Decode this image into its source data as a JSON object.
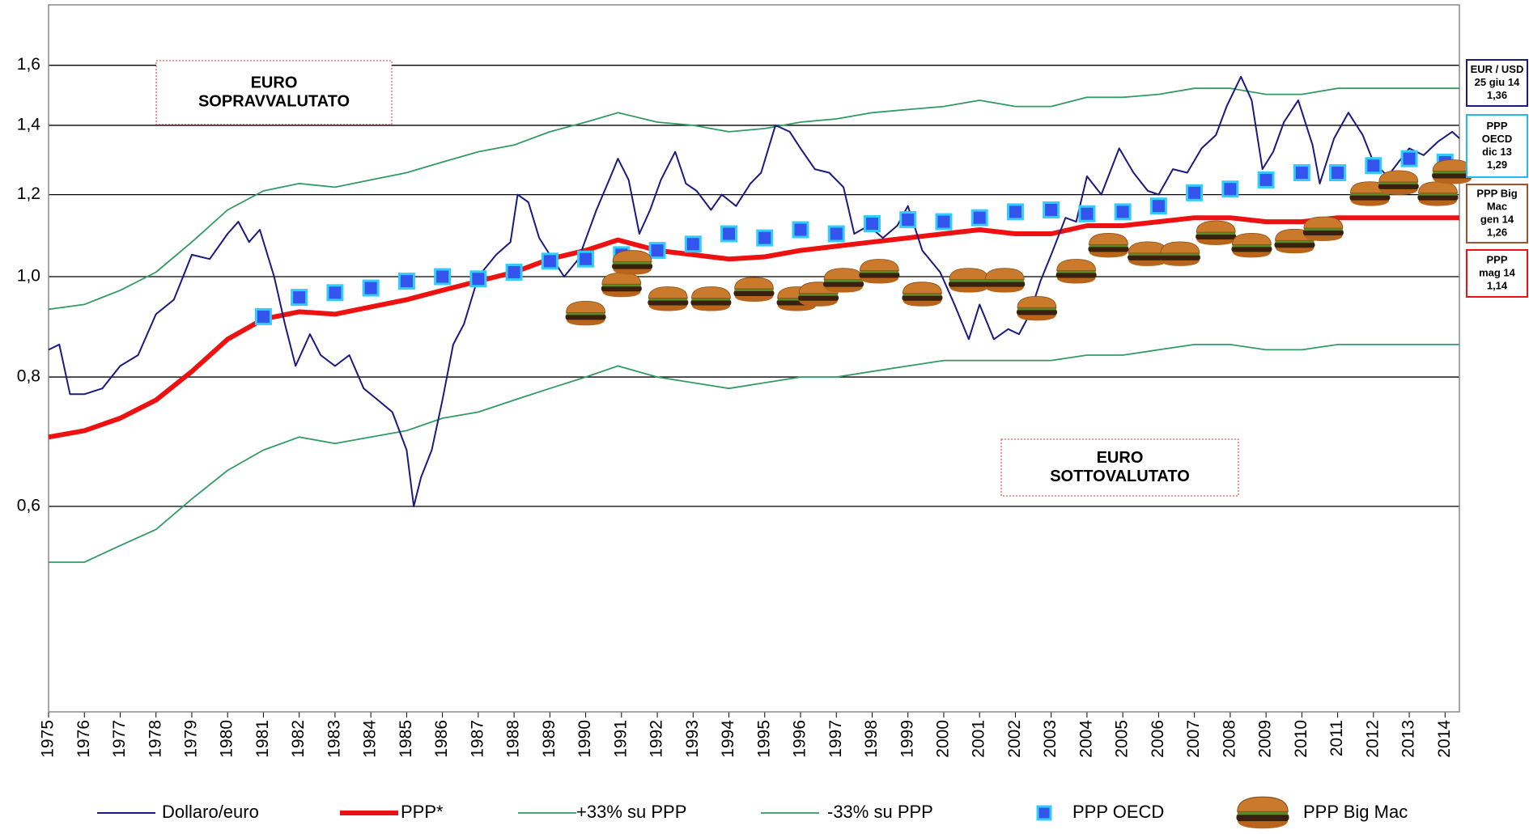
{
  "chart_data": {
    "type": "line",
    "log_y": true,
    "grid": true,
    "xlim": [
      1975,
      2014.4
    ],
    "ylim": [
      0.38,
      1.83
    ],
    "xticks": [
      1975,
      1976,
      1977,
      1978,
      1979,
      1980,
      1981,
      1982,
      1983,
      1984,
      1985,
      1986,
      1987,
      1988,
      1989,
      1990,
      1991,
      1992,
      1993,
      1994,
      1995,
      1996,
      1997,
      1998,
      1999,
      2000,
      2001,
      2002,
      2003,
      2004,
      2005,
      2006,
      2007,
      2008,
      2009,
      2010,
      2011,
      2012,
      2013,
      2014
    ],
    "yticks": [
      {
        "value": 0.6,
        "label": "0,6"
      },
      {
        "value": 0.8,
        "label": "0,8"
      },
      {
        "value": 1.0,
        "label": "1,0"
      },
      {
        "value": 1.2,
        "label": "1,2"
      },
      {
        "value": 1.4,
        "label": "1,4"
      },
      {
        "value": 1.6,
        "label": "1,6"
      }
    ],
    "series": [
      {
        "name": "Dollaro/euro",
        "color": "#1a1a80",
        "marker": "line",
        "width": 2,
        "x": [
          1975,
          1975.3,
          1975.6,
          1976,
          1976.5,
          1977,
          1977.5,
          1978,
          1978.5,
          1979,
          1979.5,
          1980,
          1980.3,
          1980.6,
          1980.9,
          1981.3,
          1981.6,
          1981.9,
          1982.3,
          1982.6,
          1983,
          1983.4,
          1983.8,
          1984.2,
          1984.6,
          1985,
          1985.2,
          1985.4,
          1985.7,
          1986,
          1986.3,
          1986.6,
          1987,
          1987.5,
          1987.9,
          1988.1,
          1988.4,
          1988.7,
          1989,
          1989.4,
          1989.8,
          1990.3,
          1990.7,
          1990.9,
          1991.2,
          1991.5,
          1991.8,
          1992.1,
          1992.5,
          1992.8,
          1993.1,
          1993.5,
          1993.8,
          1994.2,
          1994.6,
          1994.9,
          1995.3,
          1995.7,
          1996,
          1996.4,
          1996.8,
          1997.2,
          1997.5,
          1997.9,
          1998.3,
          1998.7,
          1999,
          1999.4,
          1999.9,
          2000.3,
          2000.7,
          2001,
          2001.4,
          2001.8,
          2002.1,
          2002.4,
          2002.7,
          2003,
          2003.4,
          2003.7,
          2004,
          2004.4,
          2004.9,
          2005.3,
          2005.7,
          2006,
          2006.4,
          2006.8,
          2007.2,
          2007.6,
          2007.9,
          2008.3,
          2008.6,
          2008.9,
          2009.2,
          2009.5,
          2009.9,
          2010.3,
          2010.5,
          2010.9,
          2011.3,
          2011.7,
          2012,
          2012.4,
          2012.7,
          2013,
          2013.4,
          2013.8,
          2014.2,
          2014.4
        ],
        "values": [
          0.85,
          0.86,
          0.77,
          0.77,
          0.78,
          0.82,
          0.84,
          0.92,
          0.95,
          1.05,
          1.04,
          1.1,
          1.13,
          1.08,
          1.11,
          1.0,
          0.9,
          0.82,
          0.88,
          0.84,
          0.82,
          0.84,
          0.78,
          0.76,
          0.74,
          0.68,
          0.6,
          0.64,
          0.68,
          0.76,
          0.86,
          0.9,
          1.0,
          1.05,
          1.08,
          1.2,
          1.18,
          1.09,
          1.05,
          1.0,
          1.04,
          1.16,
          1.25,
          1.3,
          1.24,
          1.1,
          1.16,
          1.24,
          1.32,
          1.23,
          1.21,
          1.16,
          1.2,
          1.17,
          1.23,
          1.26,
          1.4,
          1.38,
          1.33,
          1.27,
          1.26,
          1.22,
          1.1,
          1.12,
          1.09,
          1.12,
          1.17,
          1.06,
          1.01,
          0.94,
          0.87,
          0.94,
          0.87,
          0.89,
          0.88,
          0.92,
          0.99,
          1.05,
          1.14,
          1.13,
          1.25,
          1.2,
          1.33,
          1.26,
          1.21,
          1.2,
          1.27,
          1.26,
          1.33,
          1.37,
          1.46,
          1.56,
          1.48,
          1.27,
          1.32,
          1.41,
          1.48,
          1.34,
          1.23,
          1.36,
          1.44,
          1.37,
          1.29,
          1.25,
          1.29,
          1.33,
          1.31,
          1.35,
          1.38,
          1.36
        ]
      },
      {
        "name": "PPP*",
        "color": "#ee1111",
        "marker": "line",
        "width": 6,
        "x": [
          1975,
          1976,
          1977,
          1978,
          1979,
          1980,
          1981,
          1982,
          1983,
          1984,
          1985,
          1986,
          1987,
          1988,
          1989,
          1990,
          1990.9,
          1992,
          1993,
          1994,
          1995,
          1996,
          1997,
          1998,
          1999,
          2000,
          2001,
          2002,
          2003,
          2004,
          2005,
          2006,
          2007,
          2008,
          2009,
          2010,
          2011,
          2012,
          2013,
          2014,
          2014.4
        ],
        "values": [
          0.7,
          0.71,
          0.73,
          0.76,
          0.81,
          0.87,
          0.91,
          0.925,
          0.92,
          0.935,
          0.95,
          0.97,
          0.99,
          1.01,
          1.04,
          1.06,
          1.085,
          1.06,
          1.05,
          1.04,
          1.045,
          1.06,
          1.07,
          1.08,
          1.09,
          1.1,
          1.11,
          1.1,
          1.1,
          1.12,
          1.12,
          1.13,
          1.14,
          1.14,
          1.13,
          1.13,
          1.14,
          1.14,
          1.14,
          1.14,
          1.14
        ]
      },
      {
        "name": "+33% su PPP",
        "color": "#339966",
        "marker": "line",
        "width": 1.8,
        "x": [
          1975,
          1976,
          1977,
          1978,
          1979,
          1980,
          1981,
          1982,
          1983,
          1984,
          1985,
          1986,
          1987,
          1988,
          1989,
          1990,
          1990.9,
          1992,
          1993,
          1994,
          1995,
          1996,
          1997,
          1998,
          1999,
          2000,
          2001,
          2002,
          2003,
          2004,
          2005,
          2006,
          2007,
          2008,
          2009,
          2010,
          2011,
          2012,
          2013,
          2014,
          2014.4
        ],
        "values": [
          0.93,
          0.94,
          0.97,
          1.01,
          1.08,
          1.16,
          1.21,
          1.23,
          1.22,
          1.24,
          1.26,
          1.29,
          1.32,
          1.34,
          1.38,
          1.41,
          1.44,
          1.41,
          1.4,
          1.38,
          1.39,
          1.41,
          1.42,
          1.44,
          1.45,
          1.46,
          1.48,
          1.46,
          1.46,
          1.49,
          1.49,
          1.5,
          1.52,
          1.52,
          1.5,
          1.5,
          1.52,
          1.52,
          1.52,
          1.52,
          1.52
        ]
      },
      {
        "name": "-33% su PPP",
        "color": "#339966",
        "marker": "line",
        "width": 1.8,
        "x": [
          1975,
          1976,
          1977,
          1978,
          1979,
          1980,
          1981,
          1982,
          1983,
          1984,
          1985,
          1986,
          1987,
          1988,
          1989,
          1990,
          1990.9,
          1992,
          1993,
          1994,
          1995,
          1996,
          1997,
          1998,
          1999,
          2000,
          2001,
          2002,
          2003,
          2004,
          2005,
          2006,
          2007,
          2008,
          2009,
          2010,
          2011,
          2012,
          2013,
          2014,
          2014.4
        ],
        "values": [
          0.53,
          0.53,
          0.55,
          0.57,
          0.61,
          0.65,
          0.68,
          0.7,
          0.69,
          0.7,
          0.71,
          0.73,
          0.74,
          0.76,
          0.78,
          0.8,
          0.82,
          0.8,
          0.79,
          0.78,
          0.79,
          0.8,
          0.8,
          0.81,
          0.82,
          0.83,
          0.83,
          0.83,
          0.83,
          0.84,
          0.84,
          0.85,
          0.86,
          0.86,
          0.85,
          0.85,
          0.86,
          0.86,
          0.86,
          0.86,
          0.86
        ]
      },
      {
        "name": "PPP OECD",
        "color": "#3355ee",
        "marker": "square",
        "x": [
          1981,
          1982,
          1983,
          1984,
          1985,
          1986,
          1987,
          1988,
          1989,
          1990,
          1991,
          1992,
          1993,
          1994,
          1995,
          1996,
          1997,
          1998,
          1999,
          2000,
          2001,
          2002,
          2003,
          2004,
          2005,
          2006,
          2007,
          2008,
          2009,
          2010,
          2011,
          2012,
          2013,
          2014
        ],
        "values": [
          0.915,
          0.955,
          0.965,
          0.975,
          0.99,
          1.0,
          0.995,
          1.01,
          1.035,
          1.04,
          1.05,
          1.06,
          1.075,
          1.1,
          1.09,
          1.11,
          1.1,
          1.125,
          1.135,
          1.13,
          1.14,
          1.155,
          1.16,
          1.15,
          1.155,
          1.17,
          1.205,
          1.215,
          1.24,
          1.26,
          1.26,
          1.28,
          1.3,
          1.29
        ]
      },
      {
        "name": "PPP Big Mac",
        "color": "#8b4513",
        "marker": "burger",
        "x": [
          1990,
          1991,
          1991.3,
          1992.3,
          1993.5,
          1994.7,
          1995.9,
          1996.5,
          1997.2,
          1998.2,
          1999.4,
          2000.7,
          2001.7,
          2002.6,
          2003.7,
          2004.6,
          2005.7,
          2006.6,
          2007.6,
          2008.6,
          2009.8,
          2010.6,
          2011.9,
          2012.7,
          2013.8,
          2014.2
        ],
        "values": [
          0.92,
          0.98,
          1.03,
          0.95,
          0.95,
          0.97,
          0.95,
          0.96,
          0.99,
          1.01,
          0.96,
          0.99,
          0.99,
          0.93,
          1.01,
          1.07,
          1.05,
          1.05,
          1.1,
          1.07,
          1.08,
          1.11,
          1.2,
          1.23,
          1.2,
          1.26
        ]
      }
    ],
    "annotations": [
      {
        "lines": [
          "EURO",
          "SOPRAVVALUTATO"
        ]
      },
      {
        "lines": [
          "EURO",
          "SOTTOVALUTATO"
        ]
      }
    ],
    "side_labels": [
      {
        "lines": [
          "EUR / USD",
          "25 giu 14",
          "1,36"
        ],
        "color": "#1a1a80"
      },
      {
        "lines": [
          "PPP",
          "OECD",
          "dic 13",
          "1,29"
        ],
        "color": "#22bbee"
      },
      {
        "lines": [
          "PPP Big",
          "Mac",
          "gen 14",
          "1,26"
        ],
        "color": "#a0522d"
      },
      {
        "lines": [
          "PPP",
          "mag 14",
          "1,14"
        ],
        "color": "#ee1111"
      }
    ]
  }
}
